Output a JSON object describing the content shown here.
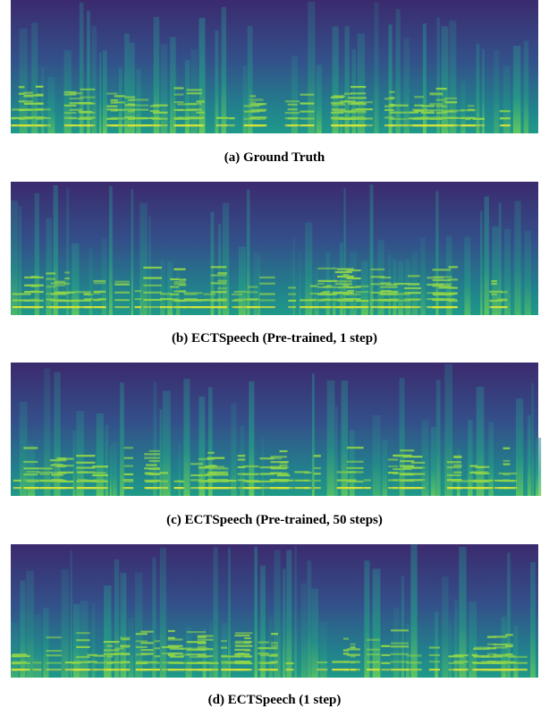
{
  "figure": {
    "panels": [
      {
        "caption": "(a) Ground Truth"
      },
      {
        "caption": "(b) ECTSpeech (Pre-trained, 1 step)"
      },
      {
        "caption": "(c) ECTSpeech (Pre-trained, 50 steps)"
      },
      {
        "caption": "(d) ECTSpeech (1 step)"
      }
    ]
  }
}
